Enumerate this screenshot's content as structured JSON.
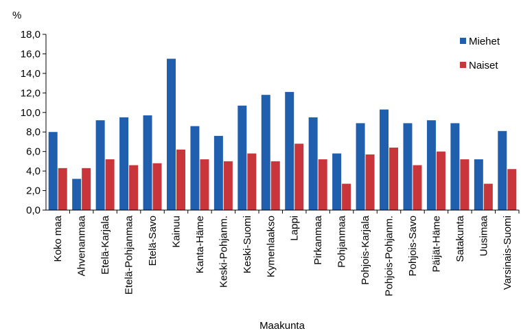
{
  "chart_data": {
    "type": "bar",
    "unit_label": "%",
    "xlabel": "Maakunta",
    "ylim": [
      0,
      18
    ],
    "ytick_step": 2,
    "ytick_labels": [
      "0,0",
      "2,0",
      "4,0",
      "6,0",
      "8,0",
      "10,0",
      "12,0",
      "14,0",
      "16,0",
      "18,0"
    ],
    "grid": false,
    "legend_position": "top-right",
    "categories": [
      "Koko maa",
      "Ahvenanmaa",
      "Etelä-Karjala",
      "Etelä-Pohjanmaa",
      "Etelä-Savo",
      "Kainuu",
      "Kanta-Häme",
      "Keski-Pohjanm.",
      "Keski-Suomi",
      "Kymenlaakso",
      "Lappi",
      "Pirkanmaa",
      "Pohjanmaa",
      "Pohjois-Karjala",
      "Pohjois-Pohjanm.",
      "Pohjois-Savo",
      "Päijät-Häme",
      "Satakunta",
      "Uusimaa",
      "Varsinais-Suomi"
    ],
    "series": [
      {
        "name": "Miehet",
        "color": "#1f5fae",
        "values": [
          8.0,
          3.2,
          9.2,
          9.5,
          9.7,
          15.5,
          8.6,
          7.6,
          10.7,
          11.8,
          12.1,
          9.5,
          5.8,
          8.9,
          10.3,
          8.9,
          9.2,
          8.9,
          5.2,
          8.1
        ]
      },
      {
        "name": "Naiset",
        "color": "#c8363b",
        "values": [
          4.3,
          4.3,
          5.2,
          4.6,
          4.8,
          6.2,
          5.2,
          5.0,
          5.8,
          5.0,
          6.8,
          5.2,
          2.7,
          5.7,
          6.4,
          4.6,
          6.0,
          5.2,
          2.7,
          4.2
        ]
      }
    ]
  }
}
